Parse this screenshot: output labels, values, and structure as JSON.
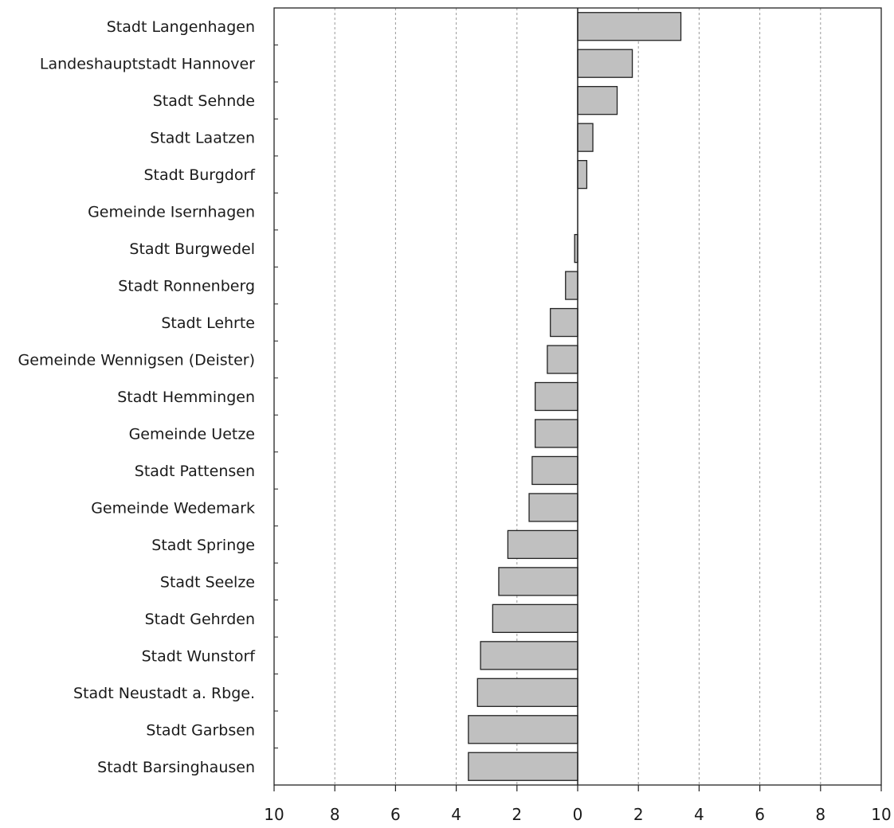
{
  "chart_data": {
    "type": "bar",
    "orientation": "horizontal",
    "title": "",
    "xlabel": "",
    "ylabel": "",
    "xlim": [
      -10,
      10
    ],
    "x_ticks": [
      -10,
      -8,
      -6,
      -4,
      -2,
      0,
      2,
      4,
      6,
      8,
      10
    ],
    "x_tick_labels": [
      "10",
      "8",
      "6",
      "4",
      "2",
      "0",
      "2",
      "4",
      "6",
      "8",
      "10"
    ],
    "grid": "vertical dashed",
    "legend": "none",
    "bar_color": "#c0c0c0",
    "bar_edge_color": "#222222",
    "categories": [
      "Stadt Langenhagen",
      "Landeshauptstadt Hannover",
      "Stadt Sehnde",
      "Stadt Laatzen",
      "Stadt Burgdorf",
      "Gemeinde Isernhagen",
      "Stadt Burgwedel",
      "Stadt Ronnenberg",
      "Stadt Lehrte",
      "Gemeinde Wennigsen (Deister)",
      "Stadt Hemmingen",
      "Gemeinde Uetze",
      "Stadt Pattensen",
      "Gemeinde Wedemark",
      "Stadt Springe",
      "Stadt Seelze",
      "Stadt Gehrden",
      "Stadt Wunstorf",
      "Stadt Neustadt a. Rbge.",
      "Stadt Garbsen",
      "Stadt Barsinghausen"
    ],
    "values": [
      3.4,
      1.8,
      1.3,
      0.5,
      0.3,
      0.0,
      -0.1,
      -0.4,
      -0.9,
      -1.0,
      -1.4,
      -1.4,
      -1.5,
      -1.6,
      -2.3,
      -2.6,
      -2.8,
      -3.2,
      -3.3,
      -3.6,
      -3.6
    ]
  }
}
